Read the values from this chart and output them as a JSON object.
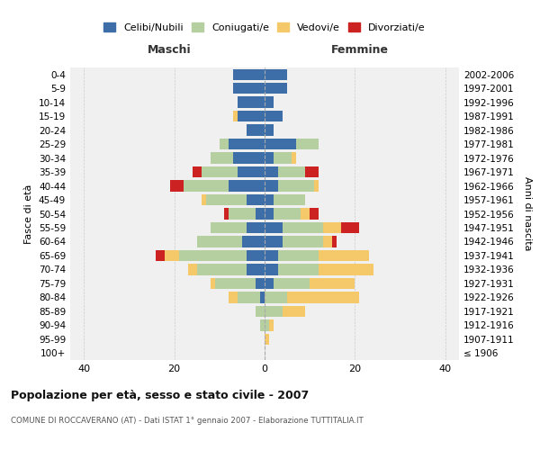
{
  "age_groups": [
    "100+",
    "95-99",
    "90-94",
    "85-89",
    "80-84",
    "75-79",
    "70-74",
    "65-69",
    "60-64",
    "55-59",
    "50-54",
    "45-49",
    "40-44",
    "35-39",
    "30-34",
    "25-29",
    "20-24",
    "15-19",
    "10-14",
    "5-9",
    "0-4"
  ],
  "birth_years": [
    "≤ 1906",
    "1907-1911",
    "1912-1916",
    "1917-1921",
    "1922-1926",
    "1927-1931",
    "1932-1936",
    "1937-1941",
    "1942-1946",
    "1947-1951",
    "1952-1956",
    "1957-1961",
    "1962-1966",
    "1967-1971",
    "1972-1976",
    "1977-1981",
    "1982-1986",
    "1987-1991",
    "1992-1996",
    "1997-2001",
    "2002-2006"
  ],
  "maschi": {
    "celibi": [
      0,
      0,
      0,
      0,
      1,
      2,
      4,
      4,
      5,
      4,
      2,
      4,
      8,
      6,
      7,
      8,
      4,
      6,
      6,
      7,
      7
    ],
    "coniugati": [
      0,
      0,
      1,
      2,
      5,
      9,
      11,
      15,
      10,
      8,
      6,
      9,
      10,
      8,
      5,
      2,
      0,
      0,
      0,
      0,
      0
    ],
    "vedovi": [
      0,
      0,
      0,
      0,
      2,
      1,
      2,
      3,
      0,
      0,
      0,
      1,
      0,
      0,
      0,
      0,
      0,
      1,
      0,
      0,
      0
    ],
    "divorziati": [
      0,
      0,
      0,
      0,
      0,
      0,
      0,
      2,
      0,
      0,
      1,
      0,
      3,
      2,
      0,
      0,
      0,
      0,
      0,
      0,
      0
    ]
  },
  "femmine": {
    "nubili": [
      0,
      0,
      0,
      0,
      0,
      2,
      3,
      3,
      4,
      4,
      2,
      2,
      3,
      3,
      2,
      7,
      2,
      4,
      2,
      5,
      5
    ],
    "coniugate": [
      0,
      0,
      1,
      4,
      5,
      8,
      9,
      9,
      9,
      9,
      6,
      7,
      8,
      6,
      4,
      5,
      0,
      0,
      0,
      0,
      0
    ],
    "vedove": [
      0,
      1,
      1,
      5,
      16,
      10,
      12,
      11,
      2,
      4,
      2,
      0,
      1,
      0,
      1,
      0,
      0,
      0,
      0,
      0,
      0
    ],
    "divorziate": [
      0,
      0,
      0,
      0,
      0,
      0,
      0,
      0,
      1,
      4,
      2,
      0,
      0,
      3,
      0,
      0,
      0,
      0,
      0,
      0,
      0
    ]
  },
  "colors": {
    "celibi": "#3d6ea8",
    "coniugati": "#b5cfa0",
    "vedovi": "#f5c869",
    "divorziati": "#cc2222"
  },
  "xlim": [
    -43,
    43
  ],
  "xticks": [
    -40,
    -20,
    0,
    20,
    40
  ],
  "xticklabels": [
    "40",
    "20",
    "0",
    "20",
    "40"
  ],
  "title": "Popolazione per età, sesso e stato civile - 2007",
  "subtitle": "COMUNE DI ROCCAVERANO (AT) - Dati ISTAT 1° gennaio 2007 - Elaborazione TUTTITALIA.IT",
  "ylabel_left": "Fasce di età",
  "ylabel_right": "Anni di nascita",
  "label_maschi": "Maschi",
  "label_femmine": "Femmine",
  "legend_labels": [
    "Celibi/Nubili",
    "Coniugati/e",
    "Vedovi/e",
    "Divorziati/e"
  ],
  "bg_color": "#ffffff",
  "plot_bg_color": "#f0f0f0",
  "grid_color": "#cccccc"
}
